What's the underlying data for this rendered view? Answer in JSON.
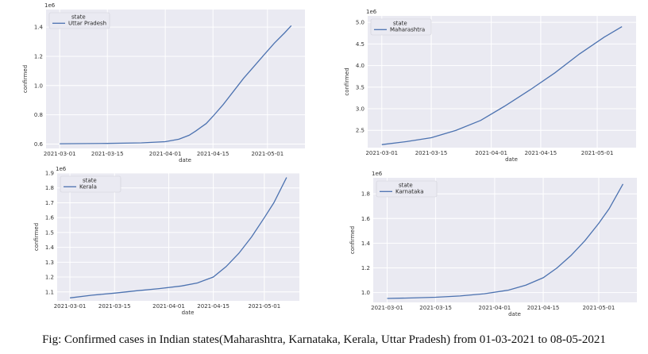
{
  "caption": "Fig: Confirmed cases in Indian states(Maharashtra, Karnataka, Kerala, Uttar Pradesh) from 01-03-2021 to 08-05-2021",
  "colors": {
    "plot_background": "#eaeaf2",
    "grid": "#ffffff",
    "line": "#4c72b0"
  },
  "chart_data": [
    {
      "type": "line",
      "legend_title": "state",
      "legend_position": "top-left",
      "grid": true,
      "exponent_label": "1e6",
      "xlabel": "date",
      "ylabel": "confirmed",
      "x_ticks": [
        "2021-03-01",
        "2021-03-15",
        "2021-04-01",
        "2021-04-15",
        "2021-05-01"
      ],
      "y_ticks": [
        "0.6",
        "0.8",
        "1.0",
        "1.2",
        "1.4"
      ],
      "ylim": [
        0.57,
        1.52
      ],
      "series": [
        {
          "name": "Uttar Pradesh",
          "x": [
            "2021-03-01",
            "2021-03-15",
            "2021-03-25",
            "2021-04-01",
            "2021-04-05",
            "2021-04-08",
            "2021-04-10",
            "2021-04-13",
            "2021-04-15",
            "2021-04-18",
            "2021-04-21",
            "2021-04-24",
            "2021-04-27",
            "2021-04-30",
            "2021-05-03",
            "2021-05-06",
            "2021-05-08"
          ],
          "y": [
            0.602,
            0.604,
            0.608,
            0.616,
            0.633,
            0.66,
            0.69,
            0.74,
            0.79,
            0.87,
            0.96,
            1.05,
            1.13,
            1.21,
            1.29,
            1.36,
            1.41
          ]
        }
      ]
    },
    {
      "type": "line",
      "legend_title": "state",
      "legend_position": "top-left",
      "grid": true,
      "exponent_label": "1e6",
      "xlabel": "date",
      "ylabel": "confirmed",
      "x_ticks": [
        "2021-03-01",
        "2021-03-15",
        "2021-04-01",
        "2021-04-15",
        "2021-05-01"
      ],
      "y_ticks": [
        "2.5",
        "3.0",
        "3.5",
        "4.0",
        "4.5",
        "5.0"
      ],
      "ylim": [
        2.1,
        5.15
      ],
      "series": [
        {
          "name": "Maharashtra",
          "x": [
            "2021-03-01",
            "2021-03-08",
            "2021-03-15",
            "2021-03-22",
            "2021-03-29",
            "2021-04-05",
            "2021-04-12",
            "2021-04-19",
            "2021-04-26",
            "2021-05-03",
            "2021-05-08"
          ],
          "y": [
            2.17,
            2.24,
            2.33,
            2.5,
            2.73,
            3.07,
            3.44,
            3.83,
            4.27,
            4.66,
            4.9
          ]
        }
      ]
    },
    {
      "type": "line",
      "legend_title": "state",
      "legend_position": "top-left",
      "grid": true,
      "exponent_label": "1e6",
      "xlabel": "date",
      "ylabel": "confirmed",
      "x_ticks": [
        "2021-03-01",
        "2021-03-15",
        "2021-04-01",
        "2021-04-15",
        "2021-05-01"
      ],
      "y_ticks": [
        "1.1",
        "1.2",
        "1.3",
        "1.4",
        "1.5",
        "1.6",
        "1.7",
        "1.8",
        "1.9"
      ],
      "ylim": [
        1.04,
        1.9
      ],
      "series": [
        {
          "name": "Kerala",
          "x": [
            "2021-03-01",
            "2021-03-08",
            "2021-03-15",
            "2021-03-22",
            "2021-03-29",
            "2021-04-05",
            "2021-04-10",
            "2021-04-15",
            "2021-04-19",
            "2021-04-23",
            "2021-04-27",
            "2021-05-01",
            "2021-05-04",
            "2021-05-08"
          ],
          "y": [
            1.06,
            1.078,
            1.092,
            1.108,
            1.122,
            1.14,
            1.16,
            1.2,
            1.27,
            1.36,
            1.47,
            1.6,
            1.7,
            1.87
          ]
        }
      ]
    },
    {
      "type": "line",
      "legend_title": "state",
      "legend_position": "top-left",
      "grid": true,
      "exponent_label": "1e6",
      "xlabel": "date",
      "ylabel": "confirmed",
      "x_ticks": [
        "2021-03-01",
        "2021-03-15",
        "2021-04-01",
        "2021-04-15",
        "2021-05-01"
      ],
      "y_ticks": [
        "1.0",
        "1.2",
        "1.4",
        "1.6",
        "1.8"
      ],
      "ylim": [
        0.92,
        1.93
      ],
      "series": [
        {
          "name": "Karnataka",
          "x": [
            "2021-03-01",
            "2021-03-08",
            "2021-03-15",
            "2021-03-22",
            "2021-03-29",
            "2021-04-05",
            "2021-04-10",
            "2021-04-15",
            "2021-04-19",
            "2021-04-23",
            "2021-04-27",
            "2021-05-01",
            "2021-05-04",
            "2021-05-08"
          ],
          "y": [
            0.952,
            0.956,
            0.962,
            0.972,
            0.99,
            1.02,
            1.06,
            1.12,
            1.2,
            1.3,
            1.42,
            1.56,
            1.68,
            1.88
          ]
        }
      ]
    }
  ]
}
